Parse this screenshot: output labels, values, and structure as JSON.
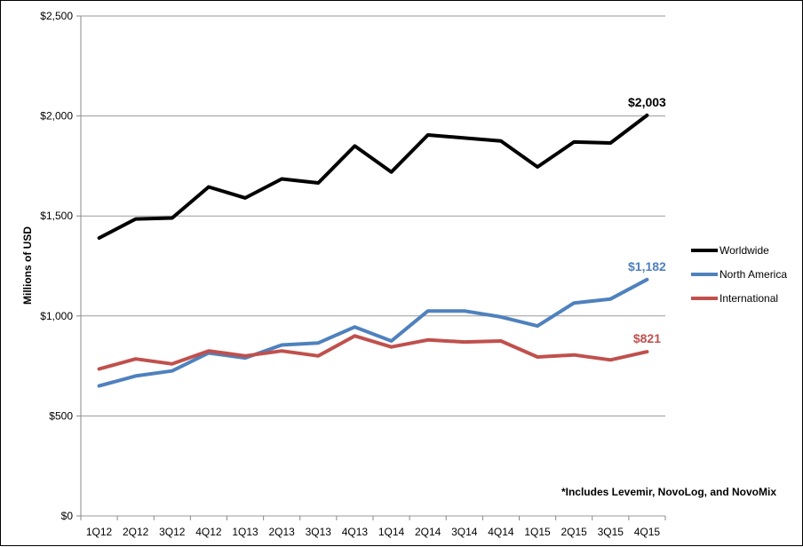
{
  "chart_data": {
    "type": "line",
    "categories": [
      "1Q12",
      "2Q12",
      "3Q12",
      "4Q12",
      "1Q13",
      "2Q13",
      "3Q13",
      "4Q13",
      "1Q14",
      "2Q14",
      "3Q14",
      "4Q14",
      "1Q15",
      "2Q15",
      "3Q15",
      "4Q15"
    ],
    "series": [
      {
        "name": "Worldwide",
        "color": "#000000",
        "values": [
          1390,
          1485,
          1490,
          1645,
          1590,
          1685,
          1665,
          1850,
          1720,
          1905,
          1890,
          1875,
          1745,
          1870,
          1865,
          2003
        ]
      },
      {
        "name": "North America",
        "color": "#4f81bd",
        "values": [
          650,
          700,
          725,
          815,
          790,
          855,
          865,
          945,
          875,
          1025,
          1025,
          995,
          950,
          1065,
          1085,
          1182
        ]
      },
      {
        "name": "International",
        "color": "#c0504d",
        "values": [
          735,
          785,
          760,
          825,
          800,
          825,
          800,
          900,
          845,
          880,
          870,
          875,
          795,
          805,
          780,
          821
        ]
      }
    ],
    "end_labels": [
      "$2,003",
      "$1,182",
      "$821"
    ],
    "ylabel": "Millions of USD",
    "ylim": [
      0,
      2500
    ],
    "y_ticks": [
      "$0",
      "$500",
      "$1,000",
      "$1,500",
      "$2,000",
      "$2,500"
    ],
    "y_tick_values": [
      0,
      500,
      1000,
      1500,
      2000,
      2500
    ],
    "grid": true,
    "legend_position": "right",
    "footnote": "*Includes Levemir, NovoLog, and NovoMix"
  }
}
